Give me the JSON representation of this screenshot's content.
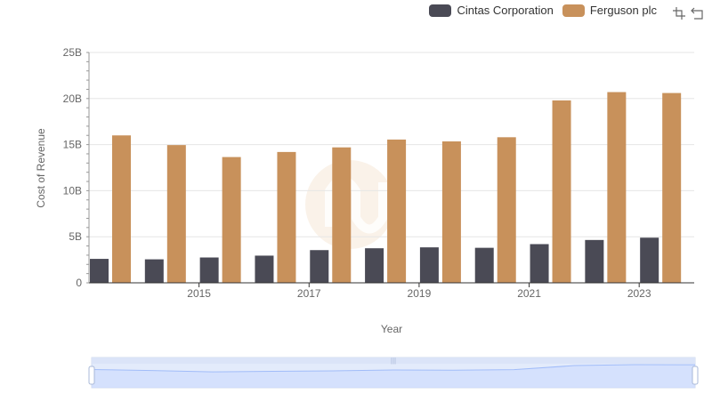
{
  "chart_data": {
    "type": "bar",
    "title": "",
    "xlabel": "Year",
    "ylabel": "Cost of Revenue",
    "categories": [
      "2014",
      "2015",
      "2016",
      "2017",
      "2018",
      "2019",
      "2020",
      "2021",
      "2022",
      "2023",
      "2024"
    ],
    "x_tick_labels": [
      "2015",
      "2017",
      "2019",
      "2021",
      "2023"
    ],
    "y_tick_labels": [
      "0",
      "5B",
      "10B",
      "15B",
      "20B",
      "25B"
    ],
    "ylim": [
      0,
      25000000000
    ],
    "grid": true,
    "legend_position": "top-right",
    "series": [
      {
        "name": "Cintas Corporation",
        "color": "#4a4a55",
        "values": [
          2600000000,
          2550000000,
          2750000000,
          2950000000,
          3550000000,
          3750000000,
          3850000000,
          3800000000,
          4200000000,
          4650000000,
          4900000000
        ]
      },
      {
        "name": "Ferguson plc",
        "color": "#c8915b",
        "values": [
          16000000000,
          14950000000,
          13650000000,
          14200000000,
          14700000000,
          15550000000,
          15350000000,
          15800000000,
          19800000000,
          20700000000,
          20600000000
        ]
      }
    ]
  },
  "toolbox": {
    "zoom_icon": "zoom-icon",
    "restore_icon": "restore-icon"
  },
  "data_zoom": {
    "range_start": 0,
    "range_end": 100
  }
}
